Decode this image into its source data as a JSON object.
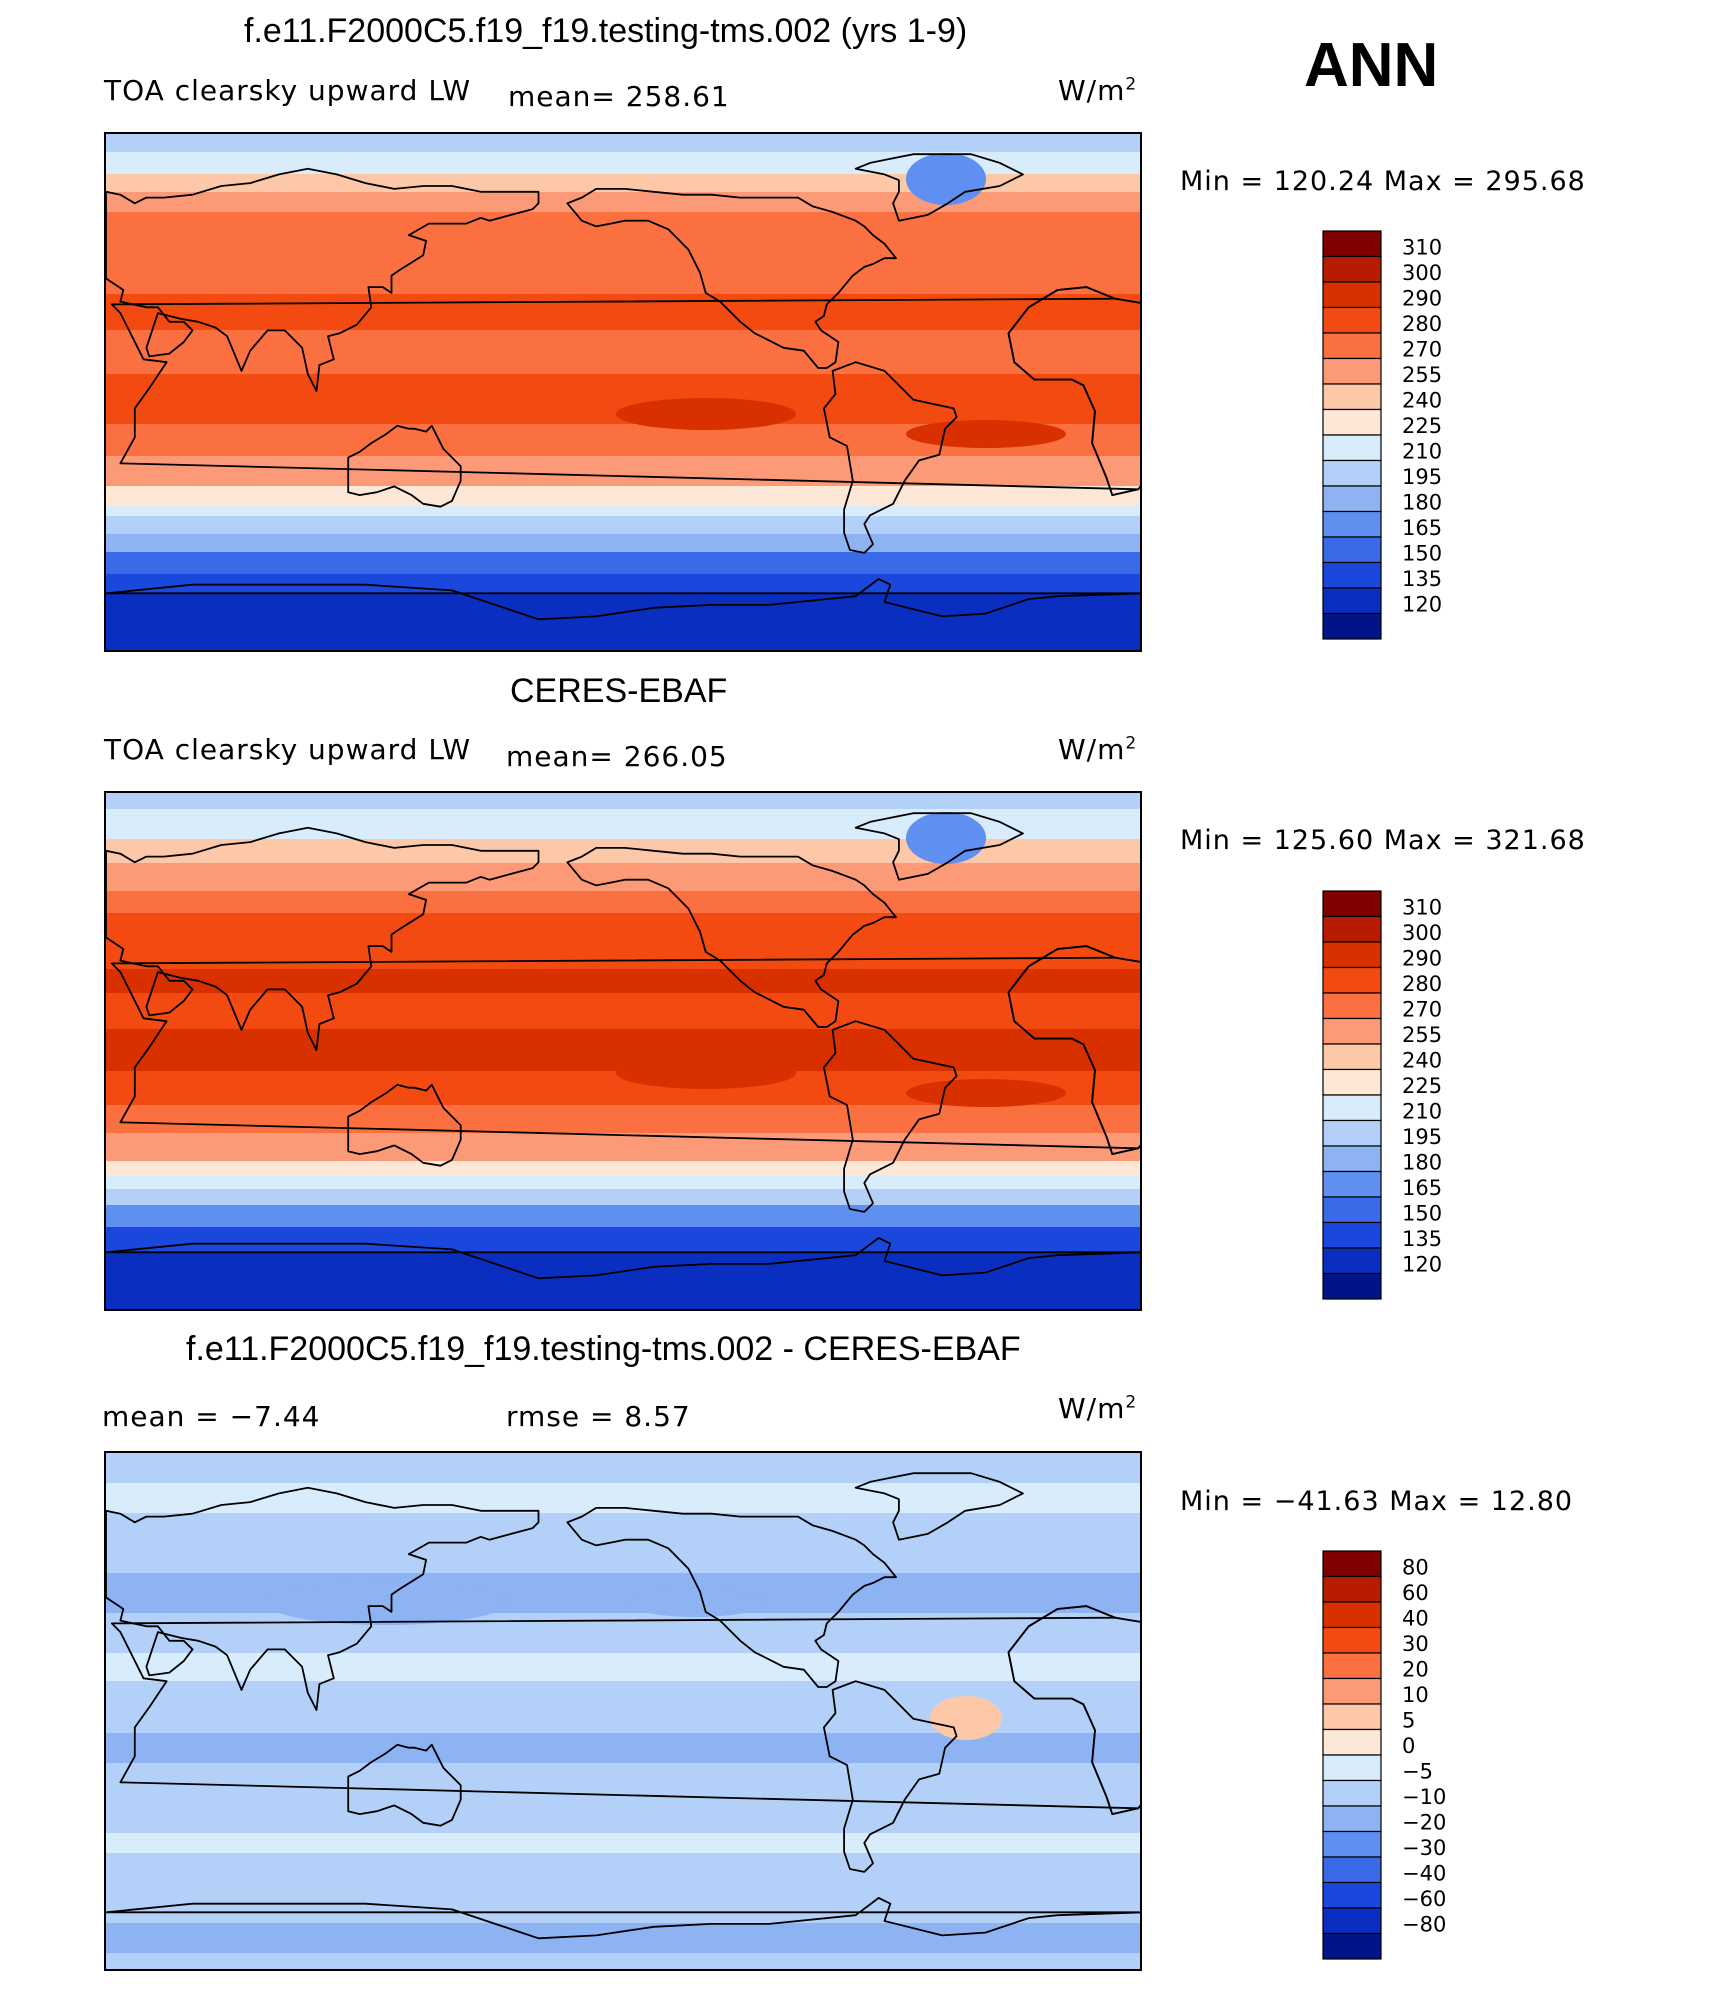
{
  "season": "ANN",
  "panels": [
    {
      "title": "f.e11.F2000C5.f19_f19.testing-tms.002 (yrs 1-9)",
      "left_label": "TOA clearsky upward LW",
      "mean_label": "mean=  258.61",
      "units": "W/m",
      "units_exp": "2",
      "minmax": "Min  =  120.24  Max  =  295.68",
      "kind": "abs"
    },
    {
      "title": "CERES-EBAF",
      "left_label": "TOA clearsky upward LW",
      "mean_label": "mean=  266.05",
      "units": "W/m",
      "units_exp": "2",
      "minmax": "Min  =  125.60  Max  =  321.68",
      "kind": "abs2"
    },
    {
      "title": "f.e11.F2000C5.f19_f19.testing-tms.002 - CERES-EBAF",
      "left_label": "mean  =    −7.44",
      "mean_label": "rmse  =     8.57",
      "units": "W/m",
      "units_exp": "2",
      "minmax": "Min  =  −41.63  Max  =     12.80",
      "kind": "diff"
    }
  ],
  "chart_data": [
    {
      "type": "heatmap",
      "title": "f.e11.F2000C5.f19_f19.testing-tms.002 (yrs 1-9)",
      "variable": "TOA clearsky upward LW",
      "units": "W/m2",
      "mean": 258.61,
      "min": 120.24,
      "max": 295.68,
      "colorbar_levels": [
        "310",
        "300",
        "290",
        "280",
        "270",
        "255",
        "240",
        "225",
        "210",
        "195",
        "180",
        "165",
        "150",
        "135",
        "120"
      ],
      "colorbar_colors": [
        "#800000",
        "#b71c00",
        "#d93000",
        "#f24a10",
        "#fa7040",
        "#fc9a78",
        "#fdc8a8",
        "#fde8d8",
        "#d9ecfb",
        "#b3d1f8",
        "#8db3f3",
        "#5f8ff0",
        "#3a6ae8",
        "#1a48dc",
        "#0a2ec0",
        "#001488"
      ]
    },
    {
      "type": "heatmap",
      "title": "CERES-EBAF",
      "variable": "TOA clearsky upward LW",
      "units": "W/m2",
      "mean": 266.05,
      "min": 125.6,
      "max": 321.68,
      "colorbar_levels": [
        "310",
        "300",
        "290",
        "280",
        "270",
        "255",
        "240",
        "225",
        "210",
        "195",
        "180",
        "165",
        "150",
        "135",
        "120"
      ],
      "colorbar_colors": [
        "#800000",
        "#b71c00",
        "#d93000",
        "#f24a10",
        "#fa7040",
        "#fc9a78",
        "#fdc8a8",
        "#fde8d8",
        "#d9ecfb",
        "#b3d1f8",
        "#8db3f3",
        "#5f8ff0",
        "#3a6ae8",
        "#1a48dc",
        "#0a2ec0",
        "#001488"
      ]
    },
    {
      "type": "heatmap",
      "title": "f.e11.F2000C5.f19_f19.testing-tms.002 - CERES-EBAF",
      "units": "W/m2",
      "mean": -7.44,
      "rmse": 8.57,
      "min": -41.63,
      "max": 12.8,
      "colorbar_levels": [
        "80",
        "60",
        "40",
        "30",
        "20",
        "10",
        "5",
        "0",
        "−5",
        "−10",
        "−20",
        "−30",
        "−40",
        "−60",
        "−80"
      ],
      "colorbar_colors": [
        "#800000",
        "#b71c00",
        "#d93000",
        "#f24a10",
        "#fa7040",
        "#fc9a78",
        "#fdc8a8",
        "#fde8d8",
        "#d9ecfb",
        "#b3d1f8",
        "#8db3f3",
        "#5f8ff0",
        "#3a6ae8",
        "#1a48dc",
        "#0a2ec0",
        "#001488"
      ]
    }
  ]
}
